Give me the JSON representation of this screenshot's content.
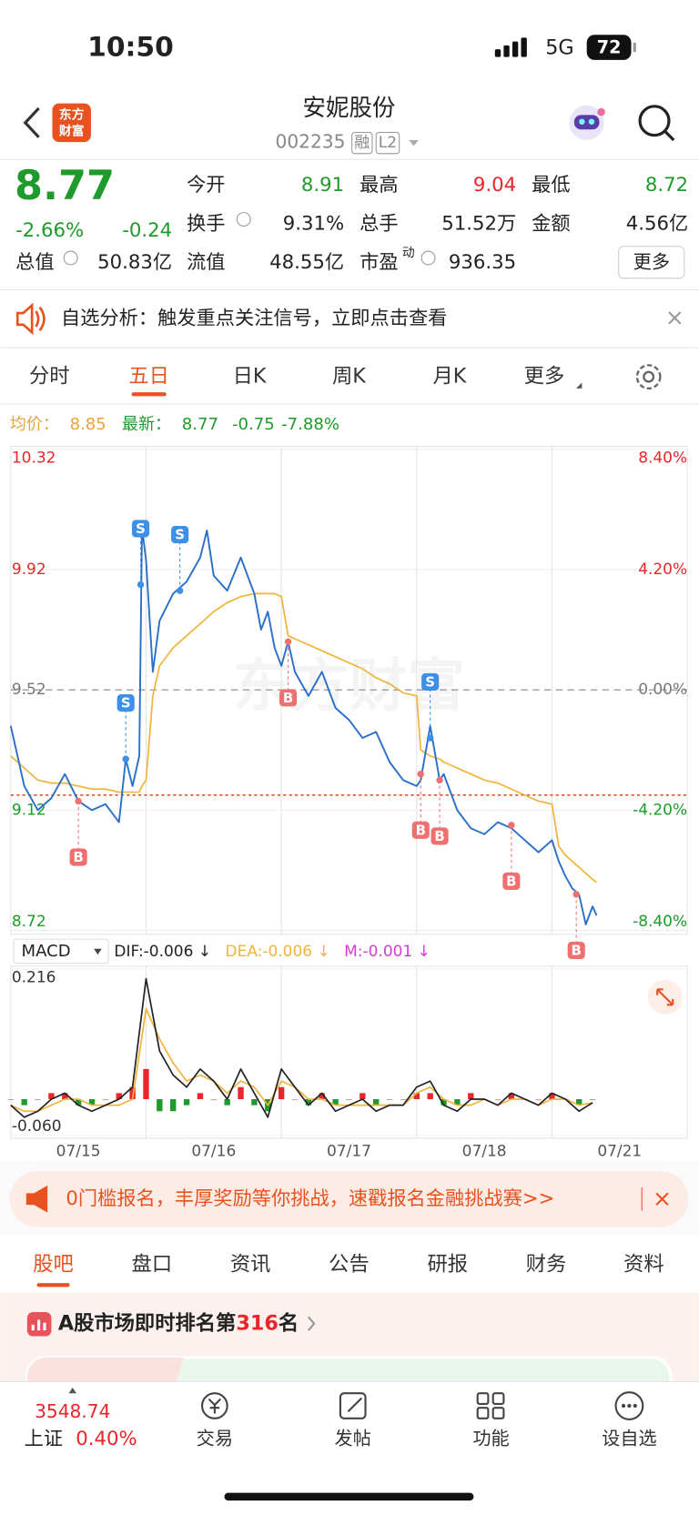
{
  "status_bar": {
    "time": "10:50",
    "network": "5G",
    "battery": "72"
  },
  "header": {
    "logo": [
      "东方",
      "财富"
    ],
    "title": "安妮股份",
    "code": "002235",
    "badges": [
      "融",
      "L2"
    ]
  },
  "quote": {
    "price": "8.77",
    "change_pct": "-2.66%",
    "change": "-0.24",
    "fields": [
      {
        "label": "今开",
        "value": "8.91"
      },
      {
        "label": "最高",
        "value": "9.04"
      },
      {
        "label": "最低",
        "value": "8.72"
      },
      {
        "label": "换手",
        "value": "9.31%"
      },
      {
        "label": "总手",
        "value": "51.52万"
      },
      {
        "label": "金额",
        "value": "4.56亿"
      },
      {
        "label": "总值",
        "value": "50.83亿"
      },
      {
        "label": "流值",
        "value": "48.55亿"
      },
      {
        "label": "市盈",
        "sup": "动",
        "value": "936.35"
      }
    ],
    "more": "更多"
  },
  "alert": {
    "text": "自选分析：触发重点关注信号，立即点击查看"
  },
  "chart_tabs": [
    "分时",
    "五日",
    "日K",
    "周K",
    "月K",
    "更多"
  ],
  "legend": {
    "avg_label": "均价：",
    "avg": "8.85",
    "last_label": "最新：",
    "last": "8.77",
    "change": "-0.75",
    "change_pct": "-7.88%"
  },
  "chart_data": [
    {
      "type": "line",
      "watermark": "东方财富",
      "xlim": [
        0,
        5
      ],
      "xticks": [
        {
          "value": 0.5,
          "label": "07/15"
        },
        {
          "value": 1.5,
          "label": "07/16"
        },
        {
          "value": 2.5,
          "label": "07/17"
        },
        {
          "value": 3.5,
          "label": "07/18"
        },
        {
          "value": 4.5,
          "label": "07/21"
        }
      ],
      "day_dividers": [
        1,
        2,
        3,
        4
      ],
      "ylim": [
        8.72,
        10.32
      ],
      "yticks": [
        8.72,
        9.12,
        9.52,
        9.92,
        10.32
      ],
      "y2lim": [
        -8.4,
        8.4
      ],
      "y2ticks": [
        {
          "value": -8.4,
          "label": "-8.40%"
        },
        {
          "value": -4.2,
          "label": "-4.20%"
        },
        {
          "value": 0,
          "label": "0.00%"
        },
        {
          "value": 4.2,
          "label": "4.20%"
        },
        {
          "value": 8.4,
          "label": "8.40%"
        }
      ],
      "baseline": 9.52,
      "reference_line": 9.17,
      "x": [
        0,
        0.1,
        0.2,
        0.3,
        0.4,
        0.5,
        0.6,
        0.7,
        0.8,
        0.85,
        0.9,
        0.95,
        0.97,
        1.0,
        1.05,
        1.1,
        1.2,
        1.3,
        1.4,
        1.45,
        1.5,
        1.6,
        1.7,
        1.8,
        1.85,
        1.9,
        1.95,
        2.0,
        2.05,
        2.1,
        2.2,
        2.3,
        2.4,
        2.5,
        2.6,
        2.7,
        2.8,
        2.9,
        3.0,
        3.03,
        3.1,
        3.17,
        3.2,
        3.3,
        3.4,
        3.5,
        3.6,
        3.7,
        3.8,
        3.9,
        4.0,
        4.05,
        4.1,
        4.15,
        4.2,
        4.25,
        4.3,
        4.33
      ],
      "series": [
        {
          "color": "#2a6fc9",
          "values": [
            9.4,
            9.2,
            9.12,
            9.16,
            9.24,
            9.15,
            9.12,
            9.14,
            9.08,
            9.29,
            9.2,
            9.3,
            10.06,
            9.95,
            9.58,
            9.75,
            9.84,
            9.88,
            9.96,
            10.05,
            9.9,
            9.85,
            9.96,
            9.84,
            9.72,
            9.78,
            9.66,
            9.6,
            9.68,
            9.58,
            9.5,
            9.58,
            9.46,
            9.42,
            9.36,
            9.38,
            9.28,
            9.22,
            9.2,
            9.22,
            9.4,
            9.22,
            9.24,
            9.12,
            9.06,
            9.04,
            9.08,
            9.06,
            9.02,
            8.98,
            9.02,
            8.95,
            8.9,
            8.86,
            8.84,
            8.74,
            8.8,
            8.77
          ]
        },
        {
          "color": "#f0b43c",
          "values": [
            9.3,
            9.26,
            9.22,
            9.21,
            9.21,
            9.2,
            9.19,
            9.19,
            9.18,
            9.18,
            9.18,
            9.18,
            9.2,
            9.22,
            9.5,
            9.6,
            9.66,
            9.7,
            9.74,
            9.76,
            9.78,
            9.81,
            9.83,
            9.84,
            9.84,
            9.84,
            9.84,
            9.83,
            9.7,
            9.69,
            9.67,
            9.65,
            9.63,
            9.61,
            9.59,
            9.56,
            9.54,
            9.51,
            9.5,
            9.32,
            9.3,
            9.29,
            9.28,
            9.26,
            9.24,
            9.22,
            9.21,
            9.19,
            9.17,
            9.15,
            9.14,
            9.0,
            8.97,
            8.95,
            8.93,
            8.91,
            8.89,
            8.88
          ]
        }
      ],
      "signals": [
        {
          "label": "S",
          "x": 0.85,
          "value": 9.29
        },
        {
          "label": "S",
          "x": 0.96,
          "value": 9.87
        },
        {
          "label": "S",
          "x": 1.25,
          "value": 9.85
        },
        {
          "label": "S",
          "x": 3.1,
          "value": 9.36
        },
        {
          "label": "B",
          "x": 0.5,
          "value": 9.15
        },
        {
          "label": "B",
          "x": 2.05,
          "value": 9.68
        },
        {
          "label": "B",
          "x": 3.03,
          "value": 9.24
        },
        {
          "label": "B",
          "x": 3.17,
          "value": 9.22
        },
        {
          "label": "B",
          "x": 3.7,
          "value": 9.07
        },
        {
          "label": "B",
          "x": 4.18,
          "value": 8.84
        }
      ]
    },
    {
      "type": "macd",
      "title": "MACD",
      "xlim": [
        0,
        5
      ],
      "ylim": [
        -0.06,
        0.216
      ],
      "yticks": [
        {
          "value": -0.06,
          "label": "-0.060"
        },
        0.216
      ],
      "x": [
        0,
        0.1,
        0.2,
        0.3,
        0.4,
        0.5,
        0.6,
        0.7,
        0.8,
        0.9,
        1.0,
        1.1,
        1.2,
        1.3,
        1.4,
        1.5,
        1.6,
        1.7,
        1.8,
        1.9,
        2.0,
        2.1,
        2.2,
        2.3,
        2.4,
        2.5,
        2.6,
        2.7,
        2.8,
        2.9,
        3.0,
        3.1,
        3.2,
        3.3,
        3.4,
        3.5,
        3.6,
        3.7,
        3.8,
        3.9,
        4.0,
        4.1,
        4.2,
        4.3
      ],
      "series": [
        {
          "name": "DIF:-0.006 ↓",
          "color": "#222222",
          "values": [
            -0.01,
            -0.03,
            -0.02,
            0.0,
            0.01,
            -0.01,
            -0.02,
            -0.01,
            0.0,
            0.02,
            0.2,
            0.08,
            0.04,
            0.02,
            0.05,
            0.03,
            0.0,
            0.05,
            0.01,
            -0.03,
            0.05,
            0.02,
            -0.01,
            0.01,
            -0.02,
            -0.01,
            0.0,
            -0.02,
            -0.01,
            -0.01,
            0.02,
            0.03,
            -0.01,
            -0.02,
            0.0,
            0.0,
            -0.01,
            0.01,
            0.0,
            -0.01,
            0.01,
            0.0,
            -0.02,
            -0.006
          ]
        },
        {
          "name": "DEA:-0.006 ↓",
          "color": "#f0b43c",
          "values": [
            -0.01,
            -0.02,
            -0.02,
            -0.01,
            0.0,
            0.0,
            -0.01,
            -0.01,
            -0.01,
            0.0,
            0.15,
            0.1,
            0.06,
            0.03,
            0.04,
            0.03,
            0.01,
            0.03,
            0.02,
            -0.01,
            0.03,
            0.02,
            0.0,
            0.0,
            -0.01,
            -0.01,
            -0.01,
            -0.01,
            -0.01,
            -0.01,
            0.01,
            0.02,
            0.0,
            -0.01,
            -0.01,
            0.0,
            -0.01,
            0.0,
            0.0,
            -0.01,
            0.0,
            0.0,
            -0.01,
            -0.006
          ]
        },
        {
          "name": "M:-0.001 ↓",
          "color": "#d63ad6",
          "pos_color": "#e8262b",
          "neg_color": "#1f9a2c",
          "values": [
            0,
            -0.01,
            0,
            0.01,
            0.01,
            -0.01,
            -0.01,
            0,
            0.01,
            0.02,
            0.05,
            -0.02,
            -0.02,
            -0.01,
            0.01,
            0,
            -0.01,
            0.02,
            -0.01,
            -0.02,
            0.02,
            0,
            -0.01,
            0.01,
            -0.01,
            0,
            0.01,
            -0.01,
            0,
            0,
            0.01,
            0.01,
            -0.01,
            -0.01,
            0.01,
            0,
            0,
            0.01,
            0,
            0,
            0.01,
            0,
            -0.01,
            -0.001
          ]
        }
      ]
    }
  ],
  "promo": {
    "text": "0门槛报名，丰厚奖励等你挑战，速戳报名金融挑战赛>>"
  },
  "info_tabs": [
    "股吧",
    "盘口",
    "资讯",
    "公告",
    "研报",
    "财务",
    "资料"
  ],
  "ranking": {
    "prefix": "A股市场即时排名第",
    "rank": "316",
    "suffix": "名"
  },
  "bottom_nav": {
    "index_value": "3548.74",
    "index_name": "上证",
    "index_change": "0.40%",
    "items": [
      "交易",
      "发帖",
      "功能",
      "设自选"
    ]
  }
}
